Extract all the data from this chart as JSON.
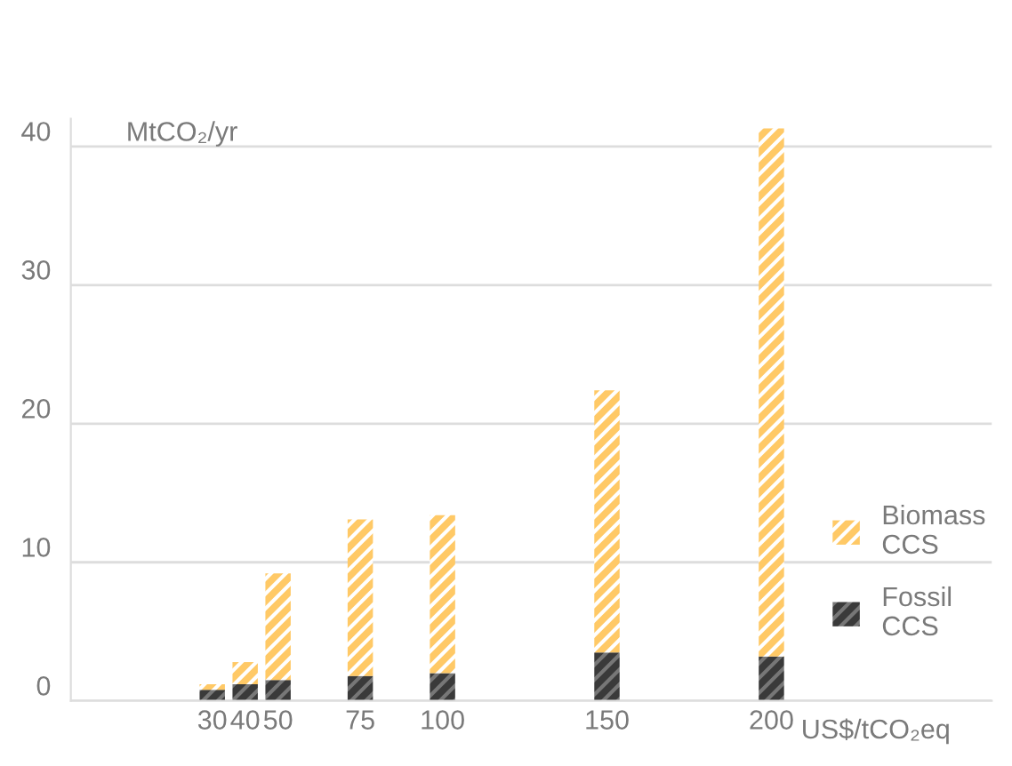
{
  "chart_data": {
    "type": "bar",
    "stacked": true,
    "x": [
      30,
      40,
      50,
      75,
      100,
      150,
      200
    ],
    "series": [
      {
        "name": "Fossil CCS",
        "color": "#3a3a3a",
        "values": [
          0.8,
          1.2,
          1.5,
          1.8,
          2.0,
          3.5,
          3.2
        ]
      },
      {
        "name": "Biomass CCS",
        "color": "#ffc966",
        "values": [
          0.4,
          1.6,
          7.7,
          11.3,
          11.4,
          18.9,
          38.1
        ]
      }
    ],
    "xlim": [
      -13,
      267
    ],
    "xticks": [
      30,
      40,
      50,
      75,
      100,
      150,
      200
    ],
    "ylim": [
      0,
      42
    ],
    "yticks": [
      0,
      10,
      20,
      30,
      40
    ],
    "ylabel": "MtCO₂/yr",
    "xlabel": "US$/tCO₂eq",
    "grid": "y",
    "legend": "right"
  }
}
